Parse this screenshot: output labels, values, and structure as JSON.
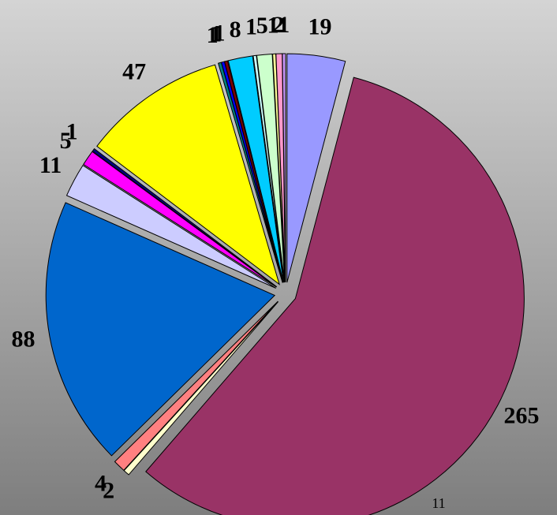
{
  "chart_data": {
    "type": "pie",
    "values": [
      19,
      265,
      2,
      4,
      88,
      11,
      5,
      1,
      47,
      1,
      1,
      1,
      8,
      1,
      5,
      1,
      2,
      1
    ],
    "colors": [
      "#9999ff",
      "#993366",
      "#ffffcc",
      "#ff8080",
      "#0066cc",
      "#ccccff",
      "#ff00ff",
      "#000080",
      "#ffff00",
      "#008080",
      "#0000ff",
      "#800000",
      "#00ccff",
      "#ccffff",
      "#ccffcc",
      "#ffff99",
      "#ff99cc",
      "#cc99ff"
    ],
    "footer": "11"
  }
}
